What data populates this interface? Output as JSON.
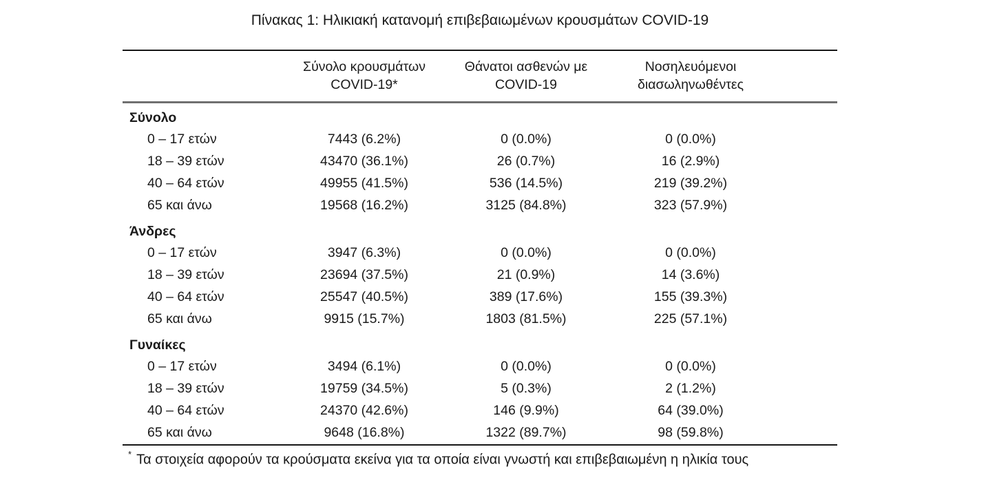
{
  "title": "Πίνακας 1: Ηλικιακή κατανομή επιβεβαιωμένων κρουσμάτων COVID-19",
  "table": {
    "column_headers": [
      {
        "line1": "Σύνολο κρουσμάτων",
        "line2": "COVID-19*"
      },
      {
        "line1": "Θάνατοι ασθενών με",
        "line2": "COVID-19"
      },
      {
        "line1": "Νοσηλευόμενοι",
        "line2": "διασωληνωθέντες"
      }
    ],
    "sections": [
      {
        "label": "Σύνολο",
        "rows": [
          {
            "age": "0 – 17 ετών",
            "cases": "7443 (6.2%)",
            "deaths": "0 (0.0%)",
            "intubated": "0 (0.0%)"
          },
          {
            "age": "18 – 39 ετών",
            "cases": "43470 (36.1%)",
            "deaths": "26 (0.7%)",
            "intubated": "16 (2.9%)"
          },
          {
            "age": "40 – 64 ετών",
            "cases": "49955 (41.5%)",
            "deaths": "536 (14.5%)",
            "intubated": "219 (39.2%)"
          },
          {
            "age": "65 και άνω",
            "cases": "19568 (16.2%)",
            "deaths": "3125 (84.8%)",
            "intubated": "323 (57.9%)"
          }
        ]
      },
      {
        "label": "Άνδρες",
        "rows": [
          {
            "age": "0 – 17 ετών",
            "cases": "3947 (6.3%)",
            "deaths": "0 (0.0%)",
            "intubated": "0 (0.0%)"
          },
          {
            "age": "18 – 39 ετών",
            "cases": "23694 (37.5%)",
            "deaths": "21 (0.9%)",
            "intubated": "14 (3.6%)"
          },
          {
            "age": "40 – 64 ετών",
            "cases": "25547 (40.5%)",
            "deaths": "389 (17.6%)",
            "intubated": "155 (39.3%)"
          },
          {
            "age": "65 και άνω",
            "cases": "9915 (15.7%)",
            "deaths": "1803 (81.5%)",
            "intubated": "225 (57.1%)"
          }
        ]
      },
      {
        "label": "Γυναίκες",
        "rows": [
          {
            "age": "0 – 17 ετών",
            "cases": "3494 (6.1%)",
            "deaths": "0 (0.0%)",
            "intubated": "0 (0.0%)"
          },
          {
            "age": "18 – 39 ετών",
            "cases": "19759 (34.5%)",
            "deaths": "5 (0.3%)",
            "intubated": "2 (1.2%)"
          },
          {
            "age": "40 – 64 ετών",
            "cases": "24370 (42.6%)",
            "deaths": "146 (9.9%)",
            "intubated": "64 (39.0%)"
          },
          {
            "age": "65 και άνω",
            "cases": "9648 (16.8%)",
            "deaths": "1322 (89.7%)",
            "intubated": "98 (59.8%)"
          }
        ]
      }
    ],
    "footnote_marker": "*",
    "footnote": "Τα στοιχεία αφορούν τα κρούσματα εκείνα για τα οποία είναι γνωστή και επιβεβαιωμένη η ηλικία τους"
  }
}
